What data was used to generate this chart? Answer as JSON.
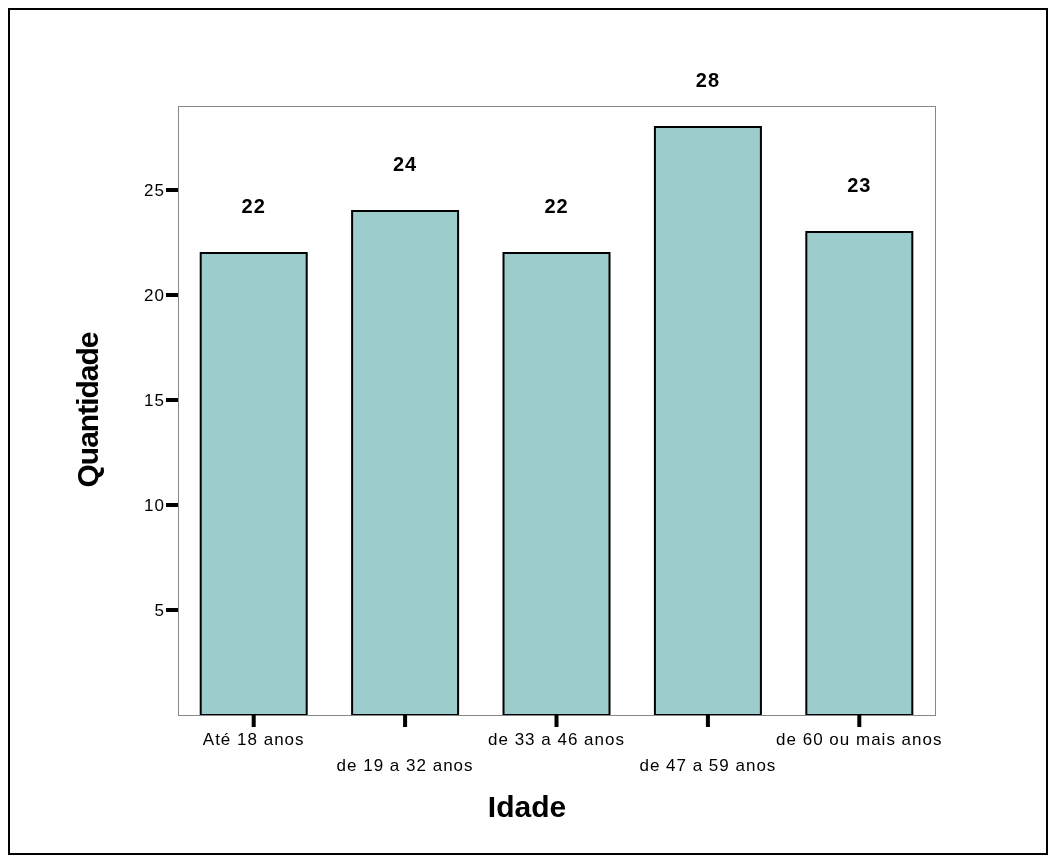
{
  "chart_data": {
    "type": "bar",
    "xlabel": "Idade",
    "ylabel": "Quantidade",
    "categories": [
      "Até 18 anos",
      "de 19 a 32 anos",
      "de 33 a 46 anos",
      "de 47 a 59 anos",
      "de 60 ou mais anos"
    ],
    "values": [
      22,
      24,
      22,
      28,
      23
    ],
    "color": "#9ccccc",
    "ylim": [
      0,
      29
    ],
    "yticks": [
      5,
      10,
      15,
      20,
      25
    ],
    "data_labels": true
  }
}
